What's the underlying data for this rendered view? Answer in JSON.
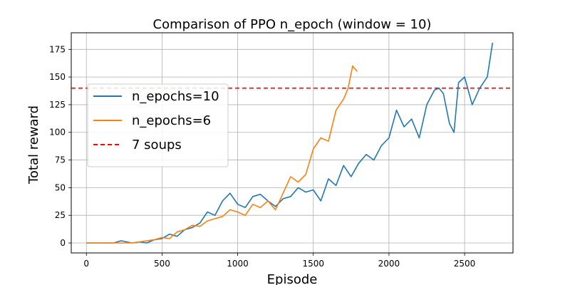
{
  "chart_data": {
    "type": "line",
    "title": "Comparison of PPO n_epoch (window = 10)",
    "xlabel": "Episode",
    "ylabel": "Total reward",
    "xlim": [
      -100,
      2820
    ],
    "ylim": [
      -9,
      190
    ],
    "xticks": [
      0,
      500,
      1000,
      1500,
      2000,
      2500
    ],
    "yticks": [
      0,
      25,
      50,
      75,
      100,
      125,
      150,
      175
    ],
    "grid": true,
    "legend_position": "center-left",
    "series": [
      {
        "name": "n_epochs=10",
        "color": "#1f77b4",
        "x": [
          0,
          100,
          180,
          230,
          300,
          350,
          400,
          450,
          500,
          550,
          600,
          650,
          700,
          750,
          800,
          850,
          900,
          950,
          1000,
          1050,
          1100,
          1150,
          1200,
          1250,
          1300,
          1350,
          1400,
          1450,
          1500,
          1550,
          1600,
          1650,
          1700,
          1750,
          1800,
          1850,
          1900,
          1950,
          2000,
          2050,
          2100,
          2150,
          2200,
          2250,
          2300,
          2330,
          2360,
          2400,
          2430,
          2460,
          2500,
          2550,
          2600,
          2650,
          2685
        ],
        "values": [
          0,
          0,
          0,
          2,
          0,
          1,
          0,
          3,
          4,
          8,
          6,
          12,
          14,
          18,
          28,
          25,
          38,
          45,
          35,
          32,
          42,
          44,
          38,
          33,
          40,
          42,
          50,
          46,
          48,
          38,
          58,
          52,
          70,
          60,
          72,
          80,
          75,
          88,
          95,
          120,
          105,
          112,
          95,
          125,
          138,
          140,
          135,
          108,
          100,
          145,
          150,
          125,
          140,
          150,
          181
        ]
      },
      {
        "name": "n_epochs=6",
        "color": "#ff7f0e",
        "x": [
          0,
          100,
          200,
          300,
          400,
          450,
          500,
          550,
          600,
          650,
          700,
          750,
          800,
          850,
          900,
          950,
          1000,
          1050,
          1100,
          1150,
          1200,
          1250,
          1300,
          1350,
          1400,
          1450,
          1500,
          1550,
          1600,
          1650,
          1700,
          1730,
          1760,
          1790
        ],
        "values": [
          0,
          0,
          0,
          0,
          2,
          3,
          5,
          4,
          10,
          12,
          16,
          15,
          20,
          22,
          24,
          30,
          28,
          25,
          35,
          32,
          38,
          30,
          45,
          60,
          55,
          62,
          85,
          95,
          92,
          120,
          130,
          140,
          160,
          155
        ]
      }
    ],
    "hlines": [
      {
        "name": "7 soups",
        "y": 140,
        "color": "#ff0000",
        "style": "dashed"
      }
    ]
  }
}
